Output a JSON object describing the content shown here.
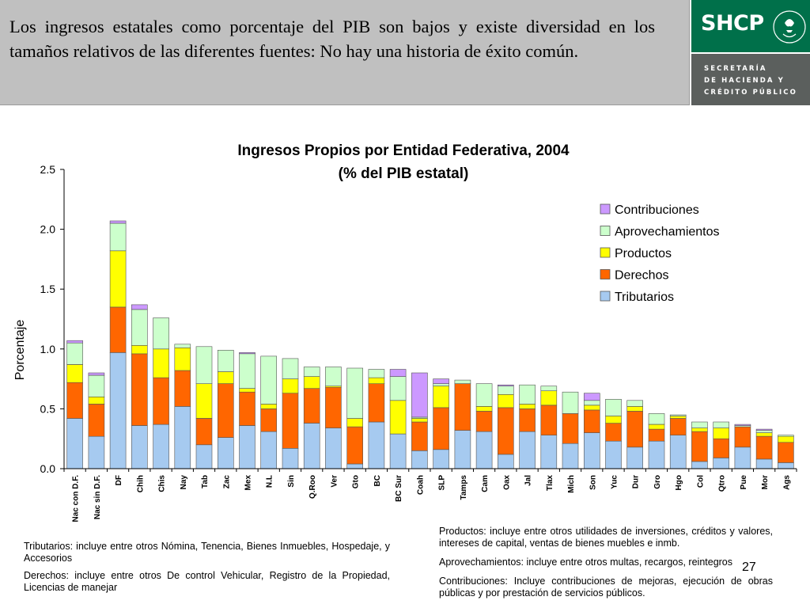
{
  "slide": {
    "headline": "Los ingresos estatales como porcentaje del PIB son bajos y existe diversidad en los tamaños relativos de las diferentes fuentes:  No hay una historia de éxito común.",
    "page_number": "27"
  },
  "logo": {
    "acronym": "SHCP",
    "line1": "SECRETARÍA",
    "line2": "DE HACIENDA Y",
    "line3": "CRÉDITO PÚBLICO",
    "colors": {
      "green": "#00704a",
      "gray": "#5b5f5d"
    }
  },
  "notes": {
    "tributarios": "Tributarios: incluye entre otros Nómina, Tenencia, Bienes Inmuebles, Hospedaje, y Accesorios",
    "derechos": "Derechos: incluye entre otros De control Vehicular, Registro de la Propiedad, Licencias de manejar",
    "productos": "Productos: incluye entre otros utilidades de inversiones, créditos y valores, intereses de capital, ventas de bienes muebles e inmb.",
    "aprovechamientos": "Aprovechamientos: incluye entre otros multas, recargos, reintegros",
    "contribuciones": "Contribuciones: Incluye contribuciones de mejoras, ejecución de obras públicas y por prestación de servicios públicos."
  },
  "chart_data": {
    "type": "bar",
    "stacked": true,
    "title": "Ingresos Propios por Entidad Federativa, 2004",
    "subtitle": "(% del PIB estatal)",
    "xlabel": "",
    "ylabel": "Porcentaje",
    "ylim": [
      0,
      2.5
    ],
    "yticks": [
      "0.0",
      "0.5",
      "1.0",
      "1.5",
      "2.0",
      "2.5"
    ],
    "grid": false,
    "legend_position": "right",
    "categories": [
      "Nac con D.F.",
      "Nac sin D.F.",
      "DF",
      "Chih",
      "Chis",
      "Nay",
      "Tab",
      "Zac",
      "Mex",
      "N.L",
      "Sin",
      "Q.Roo",
      "Ver",
      "Gto",
      "BC",
      "BC Sur",
      "Coah",
      "SLP",
      "Tamps",
      "Cam",
      "Oax",
      "Jal",
      "Tlax",
      "Mich",
      "Son",
      "Yuc",
      "Dur",
      "Gro",
      "Hgo",
      "Col",
      "Qtro",
      "Pue",
      "Mor",
      "Ags"
    ],
    "series": [
      {
        "name": "Tributarios",
        "color": "#a6caf0",
        "values": [
          0.42,
          0.27,
          0.97,
          0.36,
          0.37,
          0.52,
          0.2,
          0.26,
          0.36,
          0.31,
          0.17,
          0.38,
          0.34,
          0.04,
          0.39,
          0.29,
          0.15,
          0.16,
          0.32,
          0.31,
          0.12,
          0.31,
          0.28,
          0.21,
          0.3,
          0.23,
          0.18,
          0.23,
          0.28,
          0.06,
          0.09,
          0.18,
          0.08,
          0.05
        ]
      },
      {
        "name": "Derechos",
        "color": "#ff6600",
        "values": [
          0.3,
          0.27,
          0.38,
          0.6,
          0.39,
          0.3,
          0.22,
          0.45,
          0.28,
          0.19,
          0.46,
          0.29,
          0.34,
          0.31,
          0.32,
          0.0,
          0.24,
          0.35,
          0.39,
          0.17,
          0.39,
          0.19,
          0.25,
          0.25,
          0.19,
          0.15,
          0.3,
          0.1,
          0.14,
          0.25,
          0.16,
          0.17,
          0.19,
          0.17
        ]
      },
      {
        "name": "Productos",
        "color": "#ffff00",
        "values": [
          0.15,
          0.06,
          0.47,
          0.07,
          0.24,
          0.19,
          0.29,
          0.1,
          0.03,
          0.04,
          0.12,
          0.1,
          0.01,
          0.07,
          0.05,
          0.28,
          0.03,
          0.18,
          0.0,
          0.04,
          0.11,
          0.04,
          0.12,
          0.0,
          0.04,
          0.06,
          0.04,
          0.04,
          0.02,
          0.03,
          0.09,
          0.0,
          0.03,
          0.05
        ]
      },
      {
        "name": "Aprovechamientos",
        "color": "#ccffcc",
        "values": [
          0.18,
          0.18,
          0.23,
          0.3,
          0.26,
          0.03,
          0.31,
          0.18,
          0.29,
          0.4,
          0.17,
          0.08,
          0.16,
          0.42,
          0.07,
          0.2,
          0.01,
          0.02,
          0.03,
          0.19,
          0.07,
          0.16,
          0.04,
          0.18,
          0.04,
          0.14,
          0.05,
          0.09,
          0.01,
          0.05,
          0.05,
          0.01,
          0.02,
          0.01
        ]
      },
      {
        "name": "Contribuciones",
        "color": "#cc99ff",
        "values": [
          0.02,
          0.02,
          0.02,
          0.04,
          0.0,
          0.0,
          0.0,
          0.0,
          0.01,
          0.0,
          0.0,
          0.0,
          0.0,
          0.0,
          0.0,
          0.06,
          0.37,
          0.04,
          0.0,
          0.0,
          0.01,
          0.0,
          0.0,
          0.0,
          0.06,
          0.0,
          0.0,
          0.0,
          0.0,
          0.0,
          0.0,
          0.01,
          0.01,
          0.0
        ]
      }
    ]
  }
}
